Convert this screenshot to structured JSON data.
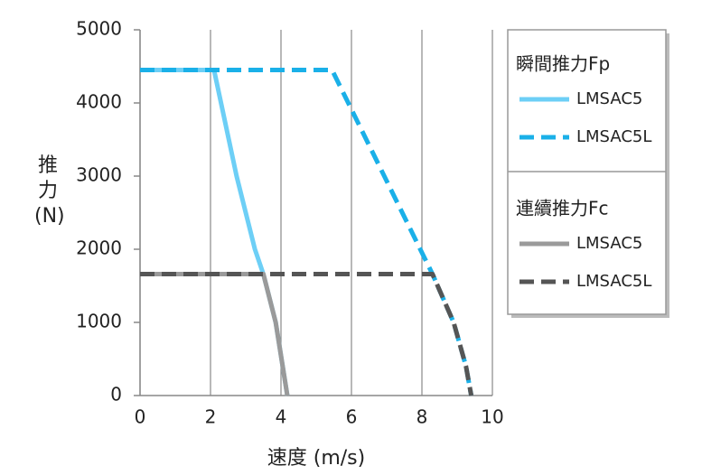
{
  "chart_data": {
    "type": "line",
    "xlabel": "速度 (m/s)",
    "ylabel": "推力 (N)",
    "xlim": [
      0,
      10
    ],
    "xticks": [
      0,
      2,
      4,
      6,
      8,
      10
    ],
    "ylim": [
      0,
      5000
    ],
    "yticks": [
      0,
      1000,
      2000,
      3000,
      4000,
      5000
    ],
    "grid": "x",
    "series_groups": [
      {
        "title": "瞬間推力Fp",
        "series": [
          {
            "name": "LMSAC5",
            "color": "#6dcff6",
            "dashed": false,
            "x": [
              0,
              2.1,
              2.74,
              3.26,
              3.5,
              3.85,
              4.18
            ],
            "values": [
              4450,
              4450,
              3000,
              2000,
              1660,
              1000,
              0
            ]
          },
          {
            "name": "LMSAC5L",
            "color": "#1ab0e8",
            "dashed": true,
            "x": [
              0,
              5.45,
              8.3,
              8.9,
              9.25,
              9.4
            ],
            "values": [
              4450,
              4450,
              1660,
              1000,
              400,
              0
            ]
          }
        ]
      },
      {
        "title": "連續推力Fc",
        "series": [
          {
            "name": "LMSAC5",
            "color": "#9a9a9a",
            "dashed": false,
            "x": [
              0,
              3.5,
              3.85,
              4.18
            ],
            "values": [
              1660,
              1660,
              1000,
              0
            ]
          },
          {
            "name": "LMSAC5L",
            "color": "#555555",
            "dashed": true,
            "x": [
              0,
              8.3,
              8.9,
              9.25,
              9.4
            ],
            "values": [
              1660,
              1660,
              1000,
              400,
              0
            ]
          }
        ]
      }
    ]
  }
}
